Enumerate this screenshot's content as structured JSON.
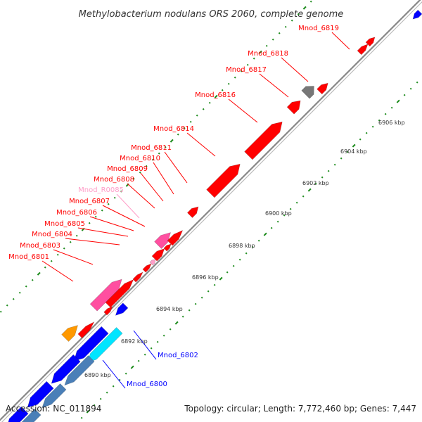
{
  "title": "Methylobacterium nodulans ORS 2060, complete genome",
  "footer": {
    "accession": "Accession: NC_011894",
    "topology": "Topology: circular; Length: 7,772,460 bp; Genes: 7,447"
  },
  "colors": {
    "red": "#ff0000",
    "blue": "#0000ff",
    "pink": "#ff4fa0",
    "light_pink": "#ff9ec8",
    "orange": "#ff9900",
    "cyan": "#00e5ff",
    "steel": "#4a7fb8",
    "gray": "#777777",
    "green_dots": "#1a8a1a",
    "backbone": "#888888"
  },
  "ticks": [
    "6890 kbp",
    "6892 kbp",
    "6894 kbp",
    "6896 kbp",
    "6898 kbp",
    "6900 kbp",
    "6902 kbp",
    "6904 kbp",
    "6906 kbp"
  ],
  "gene_labels": [
    {
      "name": "Mnod_6819",
      "color": "red"
    },
    {
      "name": "Mnod_6818",
      "color": "red"
    },
    {
      "name": "Mnod_6817",
      "color": "red"
    },
    {
      "name": "Mnod_6816",
      "color": "red"
    },
    {
      "name": "Mnod_6814",
      "color": "red"
    },
    {
      "name": "Mnod_6811",
      "color": "red"
    },
    {
      "name": "Mnod_6810",
      "color": "red"
    },
    {
      "name": "Mnod_6809",
      "color": "red"
    },
    {
      "name": "Mnod_6808",
      "color": "red"
    },
    {
      "name": "Mnod_R0085",
      "color": "light_pink"
    },
    {
      "name": "Mnod_6807",
      "color": "red"
    },
    {
      "name": "Mnod_6806",
      "color": "red"
    },
    {
      "name": "Mnod_6805",
      "color": "red"
    },
    {
      "name": "Mnod_6804",
      "color": "red"
    },
    {
      "name": "Mnod_6803",
      "color": "red"
    },
    {
      "name": "Mnod_6801",
      "color": "red"
    },
    {
      "name": "Mnod_6802",
      "color": "blue"
    },
    {
      "name": "Mnod_6800",
      "color": "blue"
    }
  ]
}
